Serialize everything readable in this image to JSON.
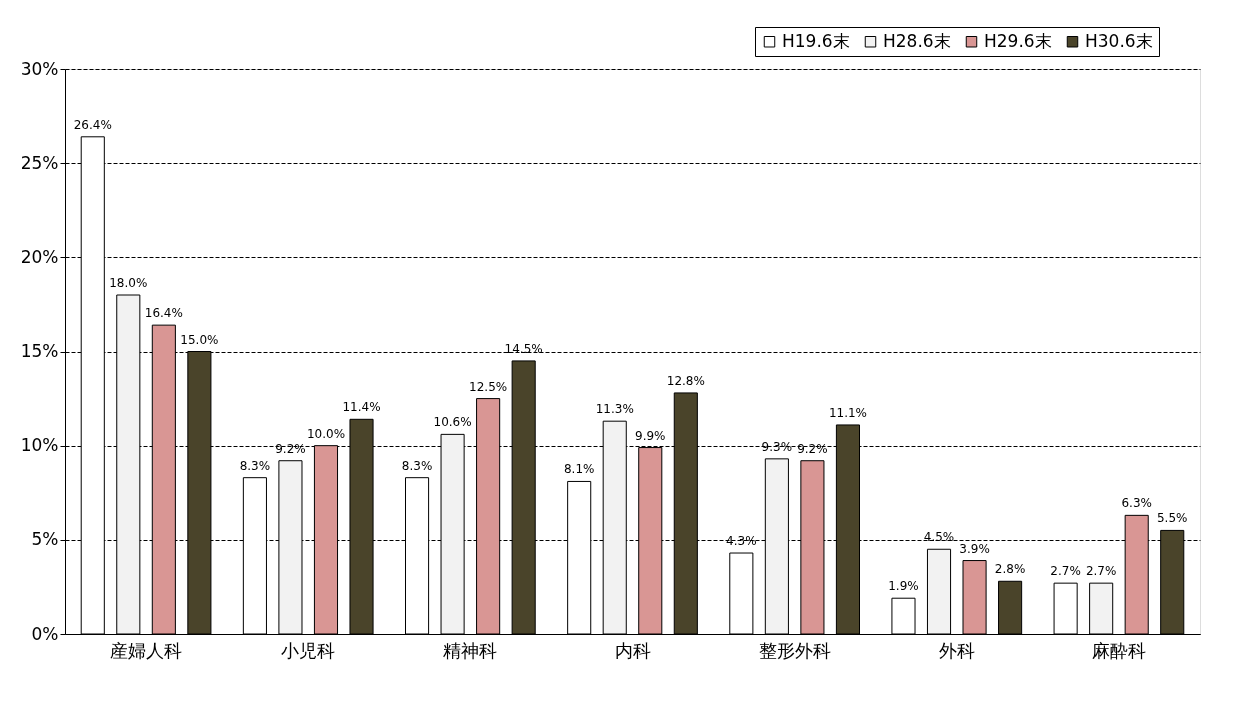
{
  "chart_data": {
    "type": "bar",
    "categories": [
      "産婦人科",
      "小児科",
      "精神科",
      "内科",
      "整形外科",
      "外科",
      "麻酔科"
    ],
    "series": [
      {
        "name": "H19.6末",
        "color": "#ffffff",
        "values": [
          26.4,
          8.3,
          8.3,
          8.1,
          4.3,
          1.9,
          2.7
        ],
        "value_labels": [
          "26.4%",
          "8.3%",
          "8.3%",
          "8.1%",
          "4.3%",
          "1.9%",
          "2.7%"
        ]
      },
      {
        "name": "H28.6末",
        "color": "#f2f2f2",
        "values": [
          18.0,
          9.2,
          10.6,
          11.3,
          9.3,
          4.5,
          2.7
        ],
        "value_labels": [
          "18.0%",
          "9.2%",
          "10.6%",
          "11.3%",
          "9.3%",
          "4.5%",
          "2.7%"
        ]
      },
      {
        "name": "H29.6末",
        "color": "#d99694",
        "values": [
          16.4,
          10.0,
          12.5,
          9.9,
          9.2,
          3.9,
          6.3
        ],
        "value_labels": [
          "16.4%",
          "10.0%",
          "12.5%",
          "9.9%",
          "9.2%",
          "3.9%",
          "6.3%"
        ]
      },
      {
        "name": "H30.6末",
        "color": "#4a442a",
        "values": [
          15.0,
          11.4,
          14.5,
          12.8,
          11.1,
          2.8,
          5.5
        ],
        "value_labels": [
          "15.0%",
          "11.4%",
          "14.5%",
          "12.8%",
          "11.1%",
          "2.8%",
          "5.5%"
        ]
      }
    ],
    "ylim": [
      0,
      30
    ],
    "yticks": [
      {
        "value": 0,
        "label": "0%"
      },
      {
        "value": 5,
        "label": "5%"
      },
      {
        "value": 10,
        "label": "10%"
      },
      {
        "value": 15,
        "label": "15%"
      },
      {
        "value": 20,
        "label": "20%"
      },
      {
        "value": 25,
        "label": "25%"
      },
      {
        "value": 30,
        "label": "30%"
      }
    ],
    "grid": "y",
    "legend": "top right"
  }
}
